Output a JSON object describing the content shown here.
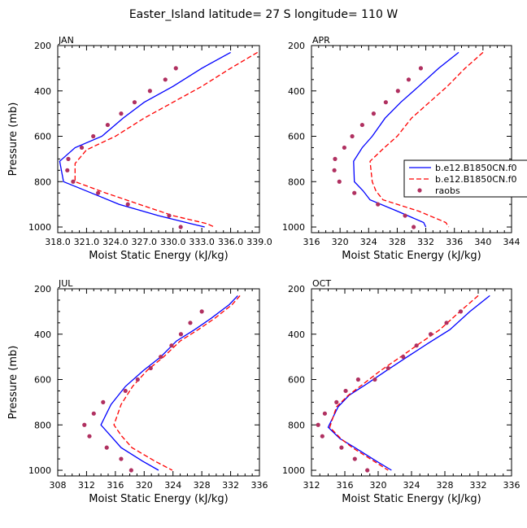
{
  "title": "Easter_Island  latitude= 27 S longitude= 110 W",
  "colors": {
    "model1": "#0000ff",
    "model2": "#ff0000",
    "obs": "#b03060"
  },
  "legend": {
    "entries": [
      {
        "label": "b.e12.B1850CN.f0",
        "style": "solid",
        "color": "#0000ff"
      },
      {
        "label": "b.e12.B1850CN.f0",
        "style": "dashed",
        "color": "#ff0000"
      },
      {
        "label": "raobs",
        "style": "dots",
        "color": "#b03060"
      }
    ]
  },
  "chart_data": [
    {
      "type": "line",
      "panel_label": "JAN",
      "xlabel": "Moist Static Energy (kJ/kg)",
      "ylabel": "Pressure (mb)",
      "xlim": [
        318.0,
        339.0
      ],
      "ylim": [
        1025,
        200
      ],
      "xticks": [
        318.0,
        321.0,
        324.0,
        327.0,
        330.0,
        333.0,
        336.0,
        339.0
      ],
      "xtick_labels": [
        "318.0",
        "321.0",
        "324.0",
        "327.0",
        "330.0",
        "333.0",
        "336.0",
        "339.0"
      ],
      "yticks": [
        200,
        400,
        600,
        800,
        1000
      ],
      "series": [
        {
          "name": "b.e12.B1850CN.f0",
          "style": "solid",
          "x": [
            336.0,
            333.0,
            330.0,
            327.0,
            324.8,
            322.6,
            319.8,
            318.2,
            318.6,
            321.5,
            324.4,
            328.5,
            331.8,
            333.3
          ],
          "y": [
            230,
            300,
            380,
            450,
            520,
            600,
            650,
            710,
            800,
            850,
            900,
            950,
            985,
            1000
          ]
        },
        {
          "name": "b.e12.B1850CN.f0",
          "style": "dashed",
          "x": [
            338.8,
            336.0,
            333.0,
            330.0,
            327.0,
            324.0,
            321.0,
            319.8,
            319.8,
            323.0,
            326.5,
            330.0,
            333.5,
            334.3
          ],
          "y": [
            230,
            300,
            380,
            450,
            520,
            600,
            660,
            720,
            800,
            850,
            900,
            950,
            985,
            1000
          ]
        },
        {
          "name": "raobs",
          "style": "dots",
          "x": [
            330.3,
            329.2,
            327.6,
            326.0,
            324.6,
            323.2,
            321.7,
            320.5,
            319.1,
            319.0,
            319.6,
            322.2,
            325.3,
            329.6,
            330.8
          ],
          "y": [
            300,
            350,
            400,
            450,
            500,
            550,
            600,
            650,
            700,
            750,
            800,
            850,
            900,
            950,
            1000
          ]
        }
      ]
    },
    {
      "type": "line",
      "panel_label": "APR",
      "xlabel": "Moist Static Energy (kJ/kg)",
      "ylabel": "",
      "xlim": [
        316,
        344
      ],
      "ylim": [
        1025,
        200
      ],
      "xticks": [
        316,
        320,
        324,
        328,
        332,
        336,
        340,
        344
      ],
      "xtick_labels": [
        "316",
        "320",
        "324",
        "328",
        "332",
        "336",
        "340",
        "344"
      ],
      "yticks": [
        200,
        400,
        600,
        800,
        1000
      ],
      "series": [
        {
          "name": "b.e12.B1850CN.f0",
          "style": "solid",
          "x": [
            336.6,
            333.8,
            331.0,
            328.5,
            326.3,
            324.5,
            323.1,
            321.9,
            322.0,
            323.2,
            324.2,
            328.0,
            331.7,
            332.0
          ],
          "y": [
            230,
            300,
            380,
            450,
            520,
            600,
            650,
            710,
            800,
            840,
            880,
            930,
            980,
            1000
          ]
        },
        {
          "name": "b.e12.B1850CN.f0",
          "style": "dashed",
          "x": [
            340.0,
            337.5,
            335.0,
            332.5,
            330.0,
            328.0,
            326.2,
            324.2,
            324.5,
            325.0,
            326.0,
            331.0,
            334.8,
            335.2
          ],
          "y": [
            230,
            300,
            380,
            450,
            520,
            600,
            650,
            710,
            800,
            840,
            880,
            930,
            980,
            1000
          ]
        },
        {
          "name": "raobs",
          "style": "dots",
          "x": [
            331.3,
            329.6,
            328.1,
            326.4,
            324.7,
            323.1,
            321.7,
            320.6,
            319.3,
            319.2,
            319.9,
            322.0,
            325.3,
            329.1,
            330.3
          ],
          "y": [
            300,
            350,
            400,
            450,
            500,
            550,
            600,
            650,
            700,
            750,
            800,
            850,
            900,
            950,
            1000
          ]
        }
      ]
    },
    {
      "type": "line",
      "panel_label": "JUL",
      "xlabel": "Moist Static Energy (kJ/kg)",
      "ylabel": "Pressure (mb)",
      "xlim": [
        308,
        336
      ],
      "ylim": [
        1025,
        200
      ],
      "xticks": [
        308,
        312,
        316,
        320,
        324,
        328,
        332,
        336
      ],
      "xtick_labels": [
        "308",
        "312",
        "316",
        "320",
        "324",
        "328",
        "332",
        "336"
      ],
      "yticks": [
        200,
        400,
        600,
        800,
        1000
      ],
      "series": [
        {
          "name": "b.e12.B1850CN.f0",
          "style": "solid",
          "x": [
            333.0,
            331.8,
            329.3,
            327.0,
            324.5,
            322.3,
            319.9,
            317.4,
            315.4,
            314.0,
            315.4,
            316.8,
            319.8,
            322.0
          ],
          "y": [
            230,
            270,
            330,
            380,
            430,
            500,
            560,
            630,
            710,
            800,
            850,
            900,
            960,
            1000
          ]
        },
        {
          "name": "b.e12.B1850CN.f0",
          "style": "dashed",
          "x": [
            333.3,
            332.2,
            329.8,
            327.5,
            325.0,
            322.7,
            320.4,
            318.4,
            316.8,
            315.8,
            316.9,
            318.3,
            321.5,
            323.9
          ],
          "y": [
            230,
            270,
            330,
            380,
            430,
            500,
            560,
            630,
            710,
            800,
            850,
            900,
            960,
            1000
          ]
        },
        {
          "name": "raobs",
          "style": "dots",
          "x": [
            328.0,
            326.4,
            325.1,
            323.8,
            322.3,
            320.9,
            319.1,
            317.4,
            314.3,
            313.0,
            311.7,
            312.4,
            314.8,
            316.8,
            318.2
          ],
          "y": [
            300,
            350,
            400,
            450,
            500,
            550,
            600,
            650,
            700,
            750,
            800,
            850,
            900,
            950,
            1000
          ]
        }
      ]
    },
    {
      "type": "line",
      "panel_label": "OCT",
      "xlabel": "Moist Static Energy (kJ/kg)",
      "ylabel": "",
      "xlim": [
        312,
        336
      ],
      "ylim": [
        1025,
        200
      ],
      "xticks": [
        312,
        316,
        320,
        324,
        328,
        332,
        336
      ],
      "xtick_labels": [
        "312",
        "316",
        "320",
        "324",
        "328",
        "332",
        "336"
      ],
      "yticks": [
        200,
        400,
        600,
        800,
        1000
      ],
      "series": [
        {
          "name": "b.e12.B1850CN.f0",
          "style": "solid",
          "x": [
            333.4,
            331.0,
            328.6,
            326.0,
            323.5,
            321.0,
            318.6,
            316.5,
            315.2,
            314.0,
            315.4,
            317.2,
            319.8,
            321.6
          ],
          "y": [
            230,
            300,
            380,
            440,
            500,
            560,
            620,
            670,
            720,
            810,
            860,
            900,
            960,
            1000
          ]
        },
        {
          "name": "b.e12.B1850CN.f0",
          "style": "dashed",
          "x": [
            332.0,
            329.8,
            327.4,
            325.0,
            322.7,
            320.3,
            318.2,
            316.4,
            315.0,
            314.2,
            315.5,
            316.9,
            319.5,
            321.2
          ],
          "y": [
            230,
            300,
            380,
            440,
            500,
            560,
            620,
            670,
            720,
            810,
            860,
            900,
            960,
            1000
          ]
        },
        {
          "name": "raobs",
          "style": "dots",
          "x": [
            329.9,
            328.2,
            326.3,
            324.6,
            323.0,
            321.2,
            319.6,
            317.6,
            316.1,
            315.0,
            313.6,
            312.8,
            313.3,
            315.6,
            317.2,
            318.7
          ],
          "y": [
            300,
            350,
            400,
            450,
            500,
            550,
            600,
            600,
            650,
            700,
            750,
            800,
            850,
            900,
            950,
            1000
          ]
        }
      ]
    }
  ]
}
